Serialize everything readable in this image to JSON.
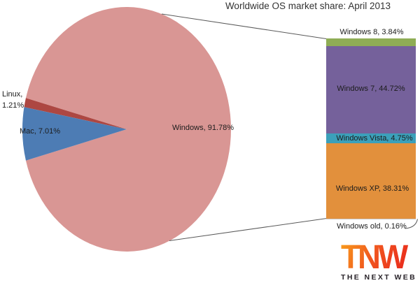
{
  "title": "Worldwide OS market share: April 2013",
  "chart_data": {
    "type": "pie",
    "subtype": "bar-of-pie",
    "title": "Worldwide OS market share: April 2013",
    "unit": "%",
    "legend_position": "none",
    "pie_slices": [
      {
        "label": "Windows",
        "value": 91.78,
        "display": "Windows, 91.78%",
        "color": "#d99694",
        "label_position": "inside"
      },
      {
        "label": "Linux",
        "value": 1.21,
        "display": "Linux, 1.21%",
        "color": "#ad4742",
        "label_position": "outside-left"
      },
      {
        "label": "Mac",
        "value": 7.01,
        "display": "Mac, 7.01%",
        "color": "#4d7cb4",
        "label_position": "inside"
      }
    ],
    "bar_segments": [
      {
        "label": "Windows 8",
        "value": 3.84,
        "display": "Windows 8, 3.84%",
        "color": "#8fad55",
        "label_position": "above"
      },
      {
        "label": "Windows 7",
        "value": 44.72,
        "display": "Windows 7, 44.72%",
        "color": "#75619b",
        "label_position": "inside"
      },
      {
        "label": "Windows Vista",
        "value": 4.75,
        "display": "Windows Vista, 4.75%",
        "color": "#3ba0ba",
        "label_position": "inside"
      },
      {
        "label": "Windows XP",
        "value": 38.31,
        "display": "Windows XP, 38.31%",
        "color": "#e2903c",
        "label_position": "inside"
      },
      {
        "label": "Windows old",
        "value": 0.16,
        "display": "Windows old, 0.16%",
        "color": "#c9c9c9",
        "label_position": "below"
      }
    ],
    "notes": "Bar details the Windows slice of the pie"
  },
  "branding": {
    "logo_text": "TNW",
    "logo_subtext": "THE NEXT WEB",
    "logo_color_start": "#f89a1c",
    "logo_color_end": "#e8221c"
  }
}
